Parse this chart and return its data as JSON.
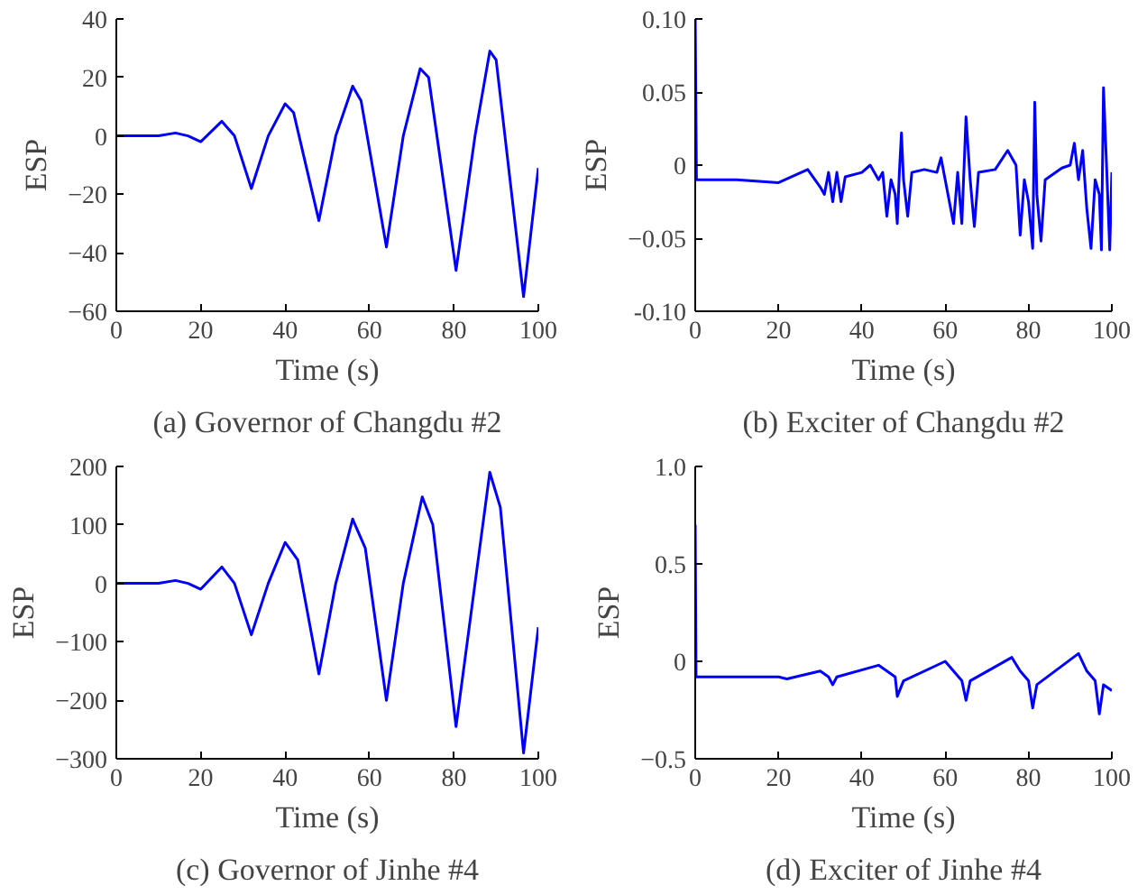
{
  "chart_data": [
    {
      "type": "line",
      "title": "(a) Governor of Changdu #2",
      "xlabel": "Time (s)",
      "ylabel": "ESP",
      "xlim": [
        0,
        100
      ],
      "ylim": [
        -60,
        40
      ],
      "xticks": [
        0,
        20,
        40,
        60,
        80,
        100
      ],
      "yticks": [
        -60,
        -40,
        -20,
        0,
        20,
        40
      ],
      "grid": false,
      "series": [
        {
          "color": "#0000ff",
          "x": [
            0,
            10,
            14,
            17,
            20,
            25,
            28,
            32,
            36,
            40,
            42,
            48,
            52,
            56,
            58,
            64,
            68,
            72,
            74,
            80.5,
            85,
            88.5,
            90,
            96.5,
            100
          ],
          "values": [
            0,
            0,
            1,
            0,
            -2,
            5,
            0,
            -18,
            0,
            11,
            8,
            -29,
            0,
            17,
            12,
            -38,
            0,
            23,
            20,
            -46,
            0,
            29,
            26,
            -55,
            -11
          ]
        }
      ]
    },
    {
      "type": "line",
      "title": "(b) Exciter of Changdu #2",
      "xlabel": "Time (s)",
      "ylabel": "ESP",
      "xlim": [
        0,
        100
      ],
      "ylim": [
        -0.1,
        0.1
      ],
      "xticks": [
        0,
        20,
        40,
        60,
        80,
        100
      ],
      "yticks": [
        {
          "value": -0.1,
          "label": "-0.10"
        },
        -0.05,
        0,
        0.05,
        {
          "value": 0.1,
          "label": "0.10"
        }
      ],
      "grid": false,
      "series": [
        {
          "color": "#0000ff",
          "x": [
            0,
            0.3,
            10,
            20,
            27,
            30,
            31,
            32,
            33,
            34,
            35,
            36,
            40,
            42,
            44,
            45,
            46,
            47,
            48,
            48.5,
            49,
            49.5,
            50,
            51,
            52,
            55,
            58,
            59,
            60,
            62,
            63,
            64,
            65,
            66,
            67,
            68,
            72,
            75,
            77,
            78,
            79,
            80,
            81,
            81.5,
            82,
            83,
            84,
            88,
            90,
            91,
            92,
            93,
            94,
            95,
            96,
            97,
            97.5,
            98,
            99,
            99.5,
            100
          ],
          "values": [
            0.1,
            -0.01,
            -0.01,
            -0.012,
            -0.003,
            -0.015,
            -0.02,
            -0.005,
            -0.025,
            -0.005,
            -0.025,
            -0.008,
            -0.005,
            0,
            -0.01,
            -0.005,
            -0.035,
            -0.01,
            -0.02,
            -0.04,
            -0.005,
            0.022,
            -0.01,
            -0.035,
            -0.005,
            -0.003,
            -0.005,
            0.005,
            -0.01,
            -0.04,
            -0.005,
            -0.04,
            0.033,
            -0.01,
            -0.042,
            -0.005,
            -0.003,
            0.01,
            0,
            -0.048,
            -0.01,
            -0.025,
            -0.057,
            0.043,
            -0.02,
            -0.052,
            -0.01,
            -0.002,
            0,
            0.015,
            -0.01,
            0.01,
            -0.03,
            -0.057,
            -0.01,
            -0.02,
            -0.058,
            0.053,
            -0.02,
            -0.058,
            -0.005
          ]
        }
      ]
    },
    {
      "type": "line",
      "title": "(c) Governor of Jinhe #4",
      "xlabel": "Time (s)",
      "ylabel": "ESP",
      "xlim": [
        0,
        100
      ],
      "ylim": [
        -300,
        200
      ],
      "xticks": [
        0,
        20,
        40,
        60,
        80,
        100
      ],
      "yticks": [
        -300,
        -200,
        -100,
        0,
        100,
        200
      ],
      "grid": false,
      "series": [
        {
          "color": "#0000ff",
          "x": [
            0,
            10,
            14,
            17,
            20,
            25,
            28,
            32,
            36,
            40,
            43,
            48,
            52,
            56,
            59,
            64,
            68,
            72.5,
            75,
            80.5,
            85,
            88.5,
            91,
            96.5,
            100
          ],
          "values": [
            0,
            0,
            5,
            0,
            -10,
            28,
            0,
            -88,
            0,
            70,
            40,
            -155,
            0,
            110,
            60,
            -200,
            0,
            148,
            100,
            -245,
            0,
            190,
            130,
            -290,
            -75
          ]
        }
      ]
    },
    {
      "type": "line",
      "title": "(d) Exciter of Jinhe #4",
      "xlabel": "Time (s)",
      "ylabel": "ESP",
      "xlim": [
        0,
        100
      ],
      "ylim": [
        -0.5,
        1
      ],
      "xticks": [
        0,
        20,
        40,
        60,
        80,
        100
      ],
      "yticks": [
        -0.5,
        0,
        0.5,
        {
          "value": 1,
          "label": "1.0"
        }
      ],
      "grid": false,
      "series": [
        {
          "color": "#0000ff",
          "x": [
            0,
            0.2,
            20,
            22,
            30,
            32,
            33,
            34,
            44,
            46,
            48,
            48.5,
            50,
            60,
            62,
            64,
            65,
            66,
            76,
            78,
            80,
            81,
            82,
            92,
            94,
            96,
            97,
            98,
            100
          ],
          "values": [
            0.7,
            -0.08,
            -0.08,
            -0.09,
            -0.05,
            -0.08,
            -0.12,
            -0.08,
            -0.02,
            -0.05,
            -0.08,
            -0.18,
            -0.1,
            0,
            -0.05,
            -0.1,
            -0.2,
            -0.1,
            0.02,
            -0.05,
            -0.1,
            -0.24,
            -0.12,
            0.04,
            -0.05,
            -0.1,
            -0.27,
            -0.12,
            -0.15
          ]
        }
      ]
    }
  ]
}
